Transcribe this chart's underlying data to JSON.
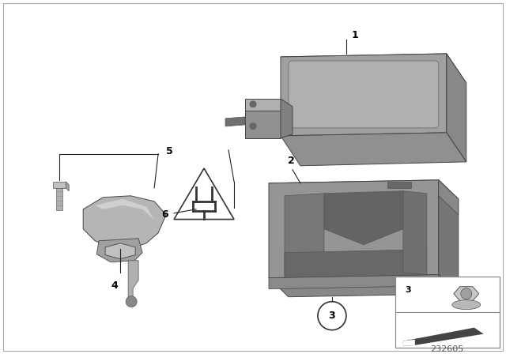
{
  "bg_color": "#ffffff",
  "fig_width": 6.4,
  "fig_height": 4.48,
  "diagram_number": "232605",
  "gray_main": "#a8a8a8",
  "gray_light": "#c8c8c8",
  "gray_dark": "#808080",
  "gray_darker": "#606060",
  "line_color": "#444444",
  "label_color": "#111111"
}
